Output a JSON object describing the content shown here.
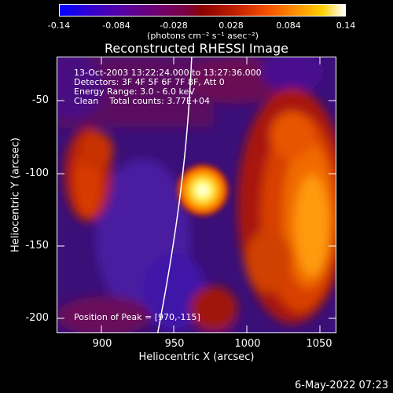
{
  "colorbar": {
    "tick_labels": [
      "-0.14",
      "-0.084",
      "-0.028",
      "0.028",
      "0.084",
      "0.14"
    ],
    "units": "(photons cm⁻² s⁻¹ asec⁻²)",
    "range": [
      -0.14,
      0.14
    ]
  },
  "title": "Reconstructed RHESSI Image",
  "info": {
    "time_range": "13-Oct-2003 13:22:24.000 to 13:27:36.000",
    "detectors": "Detectors: 3F 4F 5F 6F 7F 8F, Att 0",
    "energy": "Energy Range: 3.0 - 6.0 keV",
    "clean": "Clean    Total counts: 3.77E+04",
    "peak": "Position of Peak = [970,-115]"
  },
  "axes": {
    "xlabel": "Heliocentric X (arcsec)",
    "ylabel": "Heliocentric Y (arcsec)",
    "x_ticks": [
      "900",
      "950",
      "1000",
      "1050"
    ],
    "y_ticks": [
      "-50",
      "-100",
      "-150",
      "-200"
    ],
    "xlim": [
      868,
      1060
    ],
    "ylim": [
      -213,
      -22
    ]
  },
  "footer_date": "6-May-2022 07:23"
}
